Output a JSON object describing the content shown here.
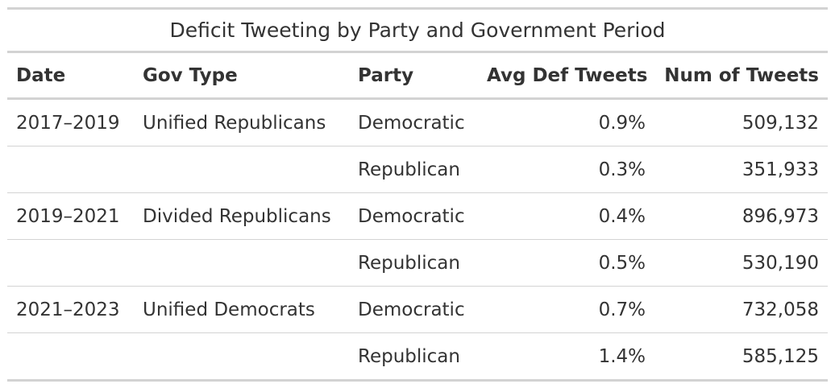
{
  "chart_data": {
    "type": "table",
    "title": "Deficit Tweeting by Party and Government Period",
    "columns": [
      "Date",
      "Gov Type",
      "Party",
      "Avg Def Tweets",
      "Num of Tweets"
    ],
    "rows": [
      {
        "date": "2017–2019",
        "gov_type": "Unified Republicans",
        "party": "Democratic",
        "avg_def_tweets": "0.9%",
        "num_tweets": "509,132"
      },
      {
        "date": "",
        "gov_type": "",
        "party": "Republican",
        "avg_def_tweets": "0.3%",
        "num_tweets": "351,933"
      },
      {
        "date": "2019–2021",
        "gov_type": "Divided Republicans",
        "party": "Democratic",
        "avg_def_tweets": "0.4%",
        "num_tweets": "896,973"
      },
      {
        "date": "",
        "gov_type": "",
        "party": "Republican",
        "avg_def_tweets": "0.5%",
        "num_tweets": "530,190"
      },
      {
        "date": "2021–2023",
        "gov_type": "Unified Democrats",
        "party": "Democratic",
        "avg_def_tweets": "0.7%",
        "num_tweets": "732,058"
      },
      {
        "date": "",
        "gov_type": "",
        "party": "Republican",
        "avg_def_tweets": "1.4%",
        "num_tweets": "585,125"
      }
    ]
  },
  "colors": {
    "text": "#333333",
    "rule": "#d3d3d3",
    "background": "#ffffff"
  }
}
